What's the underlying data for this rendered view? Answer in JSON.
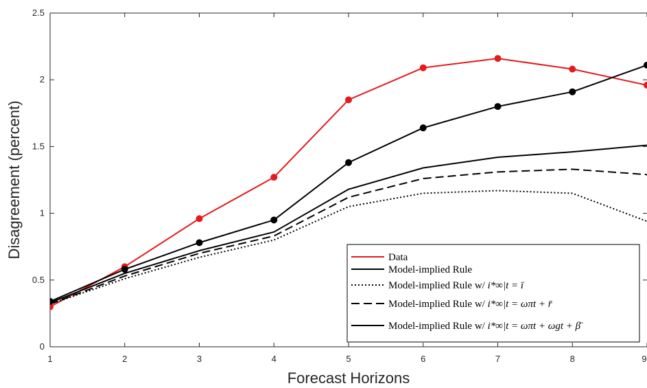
{
  "chart_data": {
    "type": "line",
    "title": "",
    "xlabel": "Forecast Horizons",
    "ylabel": "Disagreement (percent)",
    "xlim": [
      1,
      9
    ],
    "ylim": [
      0,
      2.5
    ],
    "x": [
      1,
      2,
      3,
      4,
      5,
      6,
      7,
      8,
      9
    ],
    "x_ticks": [
      "1",
      "2",
      "3",
      "4",
      "5",
      "6",
      "7",
      "8",
      "9"
    ],
    "y_ticks": [
      "0",
      "0.5",
      "1",
      "1.5",
      "2",
      "2.5"
    ],
    "grid": false,
    "legend_position": "bottom-right",
    "series": [
      {
        "name": "Data",
        "color": "#e41a1c",
        "style": "solid-markers",
        "values": [
          0.3,
          0.6,
          0.96,
          1.27,
          1.85,
          2.09,
          2.16,
          2.08,
          1.96
        ]
      },
      {
        "name": "Model-implied Rule",
        "color": "#000000",
        "style": "solid-markers",
        "values": [
          0.34,
          0.58,
          0.78,
          0.95,
          1.38,
          1.64,
          1.8,
          1.91,
          2.11
        ]
      },
      {
        "name": "Model-implied Rule w/ ",
        "math": "i*∞|t = ī",
        "color": "#000000",
        "style": "dotted",
        "values": [
          0.32,
          0.51,
          0.67,
          0.8,
          1.05,
          1.15,
          1.17,
          1.15,
          0.94
        ]
      },
      {
        "name": "Model-implied Rule w/ ",
        "math": "i*∞|t = ωπt + r̄",
        "color": "#000000",
        "style": "dashed",
        "values": [
          0.32,
          0.53,
          0.7,
          0.83,
          1.12,
          1.26,
          1.31,
          1.33,
          1.29
        ]
      },
      {
        "name": "Model-implied Rule w/ ",
        "math": "i*∞|t = ωπt + ωgt + β̄",
        "color": "#000000",
        "style": "solid",
        "values": [
          0.33,
          0.55,
          0.72,
          0.86,
          1.18,
          1.34,
          1.42,
          1.46,
          1.51
        ]
      }
    ]
  }
}
